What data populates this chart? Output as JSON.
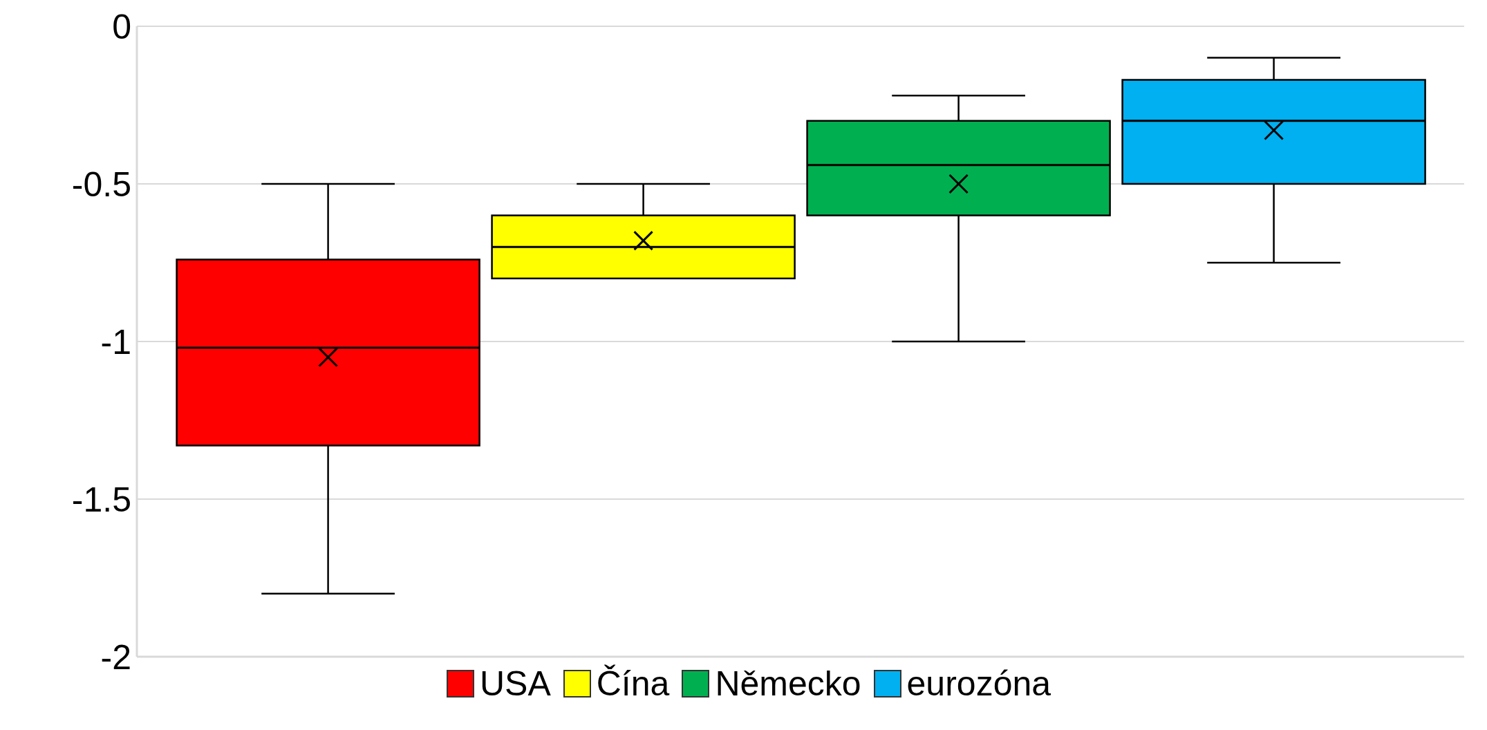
{
  "chart_data": {
    "type": "box",
    "categories": [
      null
    ],
    "series": [
      {
        "name": "USA",
        "color": "#ff0000",
        "boxes": [
          {
            "low": -1.8,
            "q1": -1.33,
            "median": -1.02,
            "q3": -0.74,
            "high": -0.5,
            "mean": -1.05
          }
        ]
      },
      {
        "name": "Čína",
        "color": "#ffff00",
        "boxes": [
          {
            "low": -0.8,
            "q1": -0.8,
            "median": -0.7,
            "q3": -0.6,
            "high": -0.5,
            "mean": -0.68
          }
        ]
      },
      {
        "name": "Německo",
        "color": "#00b050",
        "boxes": [
          {
            "low": -1.0,
            "q1": -0.6,
            "median": -0.44,
            "q3": -0.3,
            "high": -0.22,
            "mean": -0.5
          }
        ]
      },
      {
        "name": "eurozóna",
        "color": "#00b0f0",
        "boxes": [
          {
            "low": -0.75,
            "q1": -0.5,
            "median": -0.3,
            "q3": -0.17,
            "high": -0.1,
            "mean": -0.33
          }
        ]
      }
    ],
    "ylim": [
      -2,
      0
    ],
    "yticks": [
      -2,
      -1.5,
      -1,
      -0.5,
      0
    ],
    "grid": "y",
    "legend": "bottom",
    "marker": "cross",
    "tick_labels": "y"
  }
}
